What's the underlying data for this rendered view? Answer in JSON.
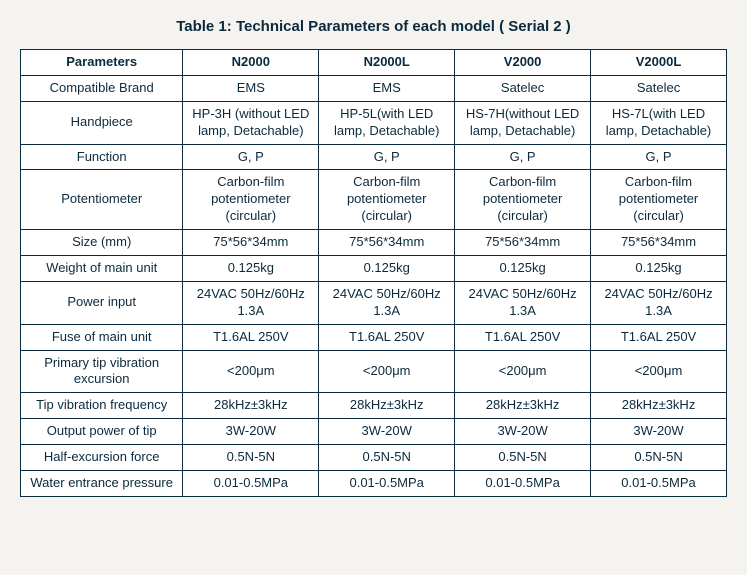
{
  "title": "Table 1: Technical Parameters of each model ( Serial  2 )",
  "headers": [
    "Parameters",
    "N2000",
    "N2000L",
    "V2000",
    "V2000L"
  ],
  "rows": [
    {
      "param": "Compatible Brand",
      "v": [
        "EMS",
        "EMS",
        "Satelec",
        "Satelec"
      ]
    },
    {
      "param": "Handpiece",
      "v": [
        "HP-3H (without LED lamp, Detachable)",
        "HP-5L(with LED lamp, Detachable)",
        "HS-7H(without LED lamp, Detachable)",
        "HS-7L(with LED lamp, Detachable)"
      ]
    },
    {
      "param": "Function",
      "v": [
        "G, P",
        "G, P",
        "G, P",
        "G, P"
      ]
    },
    {
      "param": "Potentiometer",
      "v": [
        "Carbon-film potentiometer (circular)",
        "Carbon-film potentiometer (circular)",
        "Carbon-film potentiometer (circular)",
        "Carbon-film potentiometer (circular)"
      ]
    },
    {
      "param": "Size (mm)",
      "v": [
        "75*56*34mm",
        "75*56*34mm",
        "75*56*34mm",
        "75*56*34mm"
      ]
    },
    {
      "param": "Weight of main unit",
      "v": [
        "0.125kg",
        "0.125kg",
        "0.125kg",
        "0.125kg"
      ]
    },
    {
      "param": "Power input",
      "v": [
        "24VAC 50Hz/60Hz 1.3A",
        "24VAC 50Hz/60Hz 1.3A",
        "24VAC 50Hz/60Hz 1.3A",
        "24VAC 50Hz/60Hz 1.3A"
      ]
    },
    {
      "param": "Fuse of main unit",
      "v": [
        "T1.6AL 250V",
        "T1.6AL 250V",
        "T1.6AL 250V",
        "T1.6AL 250V"
      ]
    },
    {
      "param": "Primary tip vibration excursion",
      "v": [
        "<200μm",
        "<200μm",
        "<200μm",
        "<200μm"
      ]
    },
    {
      "param": "Tip vibration frequency",
      "v": [
        "28kHz±3kHz",
        "28kHz±3kHz",
        "28kHz±3kHz",
        "28kHz±3kHz"
      ]
    },
    {
      "param": "Output power of tip",
      "v": [
        "3W-20W",
        "3W-20W",
        "3W-20W",
        "3W-20W"
      ]
    },
    {
      "param": "Half-excursion force",
      "v": [
        "0.5N-5N",
        "0.5N-5N",
        "0.5N-5N",
        "0.5N-5N"
      ]
    },
    {
      "param": "Water entrance pressure",
      "v": [
        "0.01-0.5MPa",
        "0.01-0.5MPa",
        "0.01-0.5MPa",
        "0.01-0.5MPa"
      ]
    }
  ],
  "style": {
    "background": "#f5f3ef",
    "border_color": "#0b2a3d",
    "text_color": "#0b2a3d",
    "title_fontsize": 15,
    "cell_fontsize": 13
  }
}
